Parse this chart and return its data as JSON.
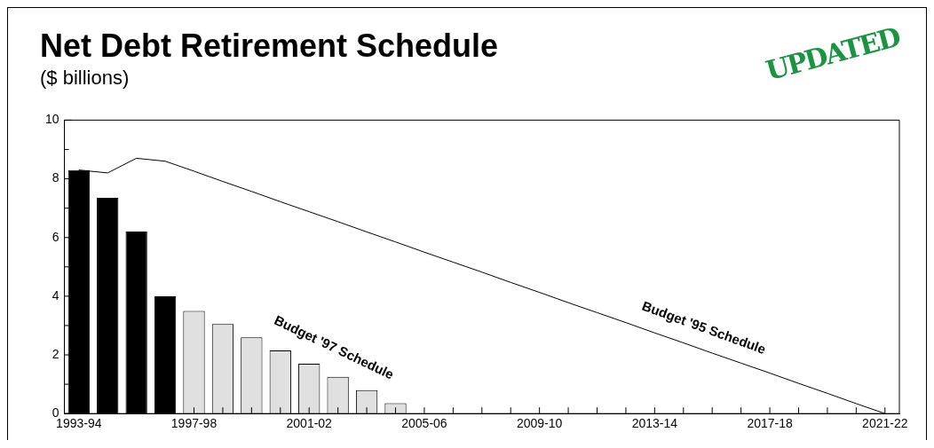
{
  "chart_data": {
    "type": "bar",
    "title": "Net Debt Retirement Schedule",
    "subtitle": "($ billions)",
    "categories": [
      "1993-94",
      null,
      null,
      null,
      "1997-98",
      null,
      null,
      null,
      "2001-02",
      null,
      null,
      null,
      "2005-06",
      null,
      null,
      null,
      "2009-10",
      null,
      null,
      null,
      "2013-14",
      null,
      null,
      null,
      "2017-18",
      null,
      null,
      null,
      "2021-22"
    ],
    "series": [
      {
        "colors": [
          "#000000",
          "#000000",
          "#000000",
          "#000000",
          "#e0e0e0",
          "#e0e0e0",
          "#e0e0e0",
          "#e0e0e0",
          "#e0e0e0",
          "#e0e0e0",
          "#e0e0e0",
          "#e0e0e0",
          "#e0e0e0",
          "#e0e0e0",
          "#e0e0e0",
          "#e0e0e0",
          "#e0e0e0",
          "#e0e0e0",
          "#e0e0e0",
          "#e0e0e0",
          "#e0e0e0",
          "#e0e0e0",
          "#e0e0e0",
          "#e0e0e0",
          "#e0e0e0",
          "#e0e0e0",
          "#e0e0e0",
          "#e0e0e0",
          "#e0e0e0"
        ],
        "values": [
          8.3,
          7.35,
          6.2,
          4.0,
          3.5,
          3.05,
          2.6,
          2.15,
          1.7,
          1.25,
          0.8,
          0.35,
          null,
          null,
          null,
          null,
          null,
          null,
          null,
          null,
          null,
          null,
          null,
          null,
          null,
          null,
          null,
          null,
          null
        ]
      },
      {
        "type": "line",
        "color": "#000000",
        "values": [
          8.3,
          8.2,
          8.7,
          8.6,
          8.26,
          7.91,
          7.57,
          7.22,
          6.88,
          6.54,
          6.19,
          5.85,
          5.5,
          5.16,
          4.82,
          4.47,
          4.13,
          3.78,
          3.44,
          3.1,
          2.75,
          2.41,
          2.06,
          1.72,
          1.38,
          1.03,
          0.69,
          0.34,
          0
        ]
      }
    ],
    "ylim": [
      0,
      10
    ],
    "yticks": [
      0,
      {
        "value": 1,
        "label": null
      },
      2,
      {
        "value": 3,
        "label": null
      },
      4,
      {
        "value": 5,
        "label": null
      },
      6,
      {
        "value": 7,
        "label": null
      },
      8,
      {
        "value": 9,
        "label": null
      },
      10
    ],
    "grid": false,
    "legend": false,
    "marker": "none",
    "line_style": "solid",
    "annotations": [
      "Budget '97 Schedule",
      "Budget '95 Schedule",
      "UPDATED"
    ]
  }
}
